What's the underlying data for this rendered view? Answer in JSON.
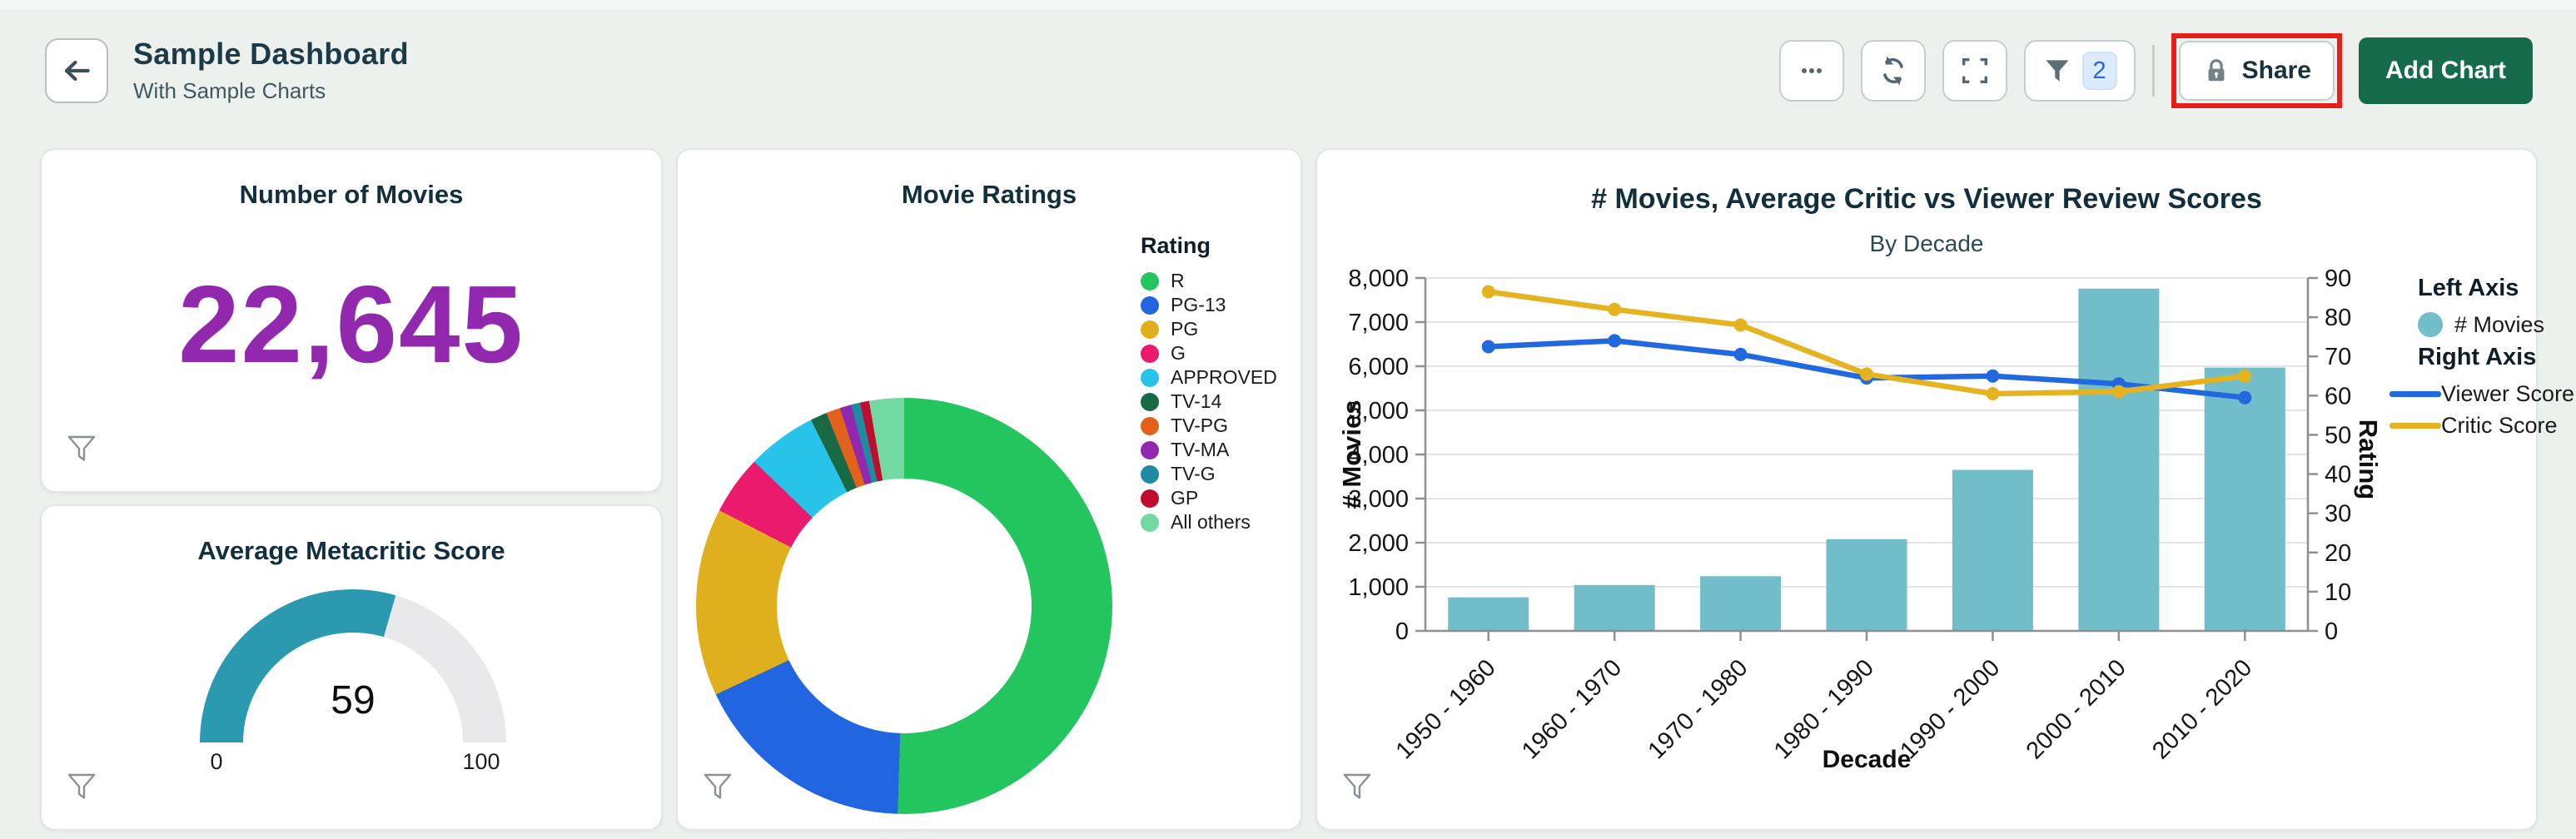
{
  "header": {
    "title": "Sample Dashboard",
    "subtitle": "With Sample Charts",
    "back_icon": "arrow-left"
  },
  "toolbar": {
    "more_icon": "ellipsis",
    "refresh_icon": "refresh",
    "fullscreen_icon": "fullscreen",
    "filter_icon": "funnel",
    "filter_count": "2",
    "share": {
      "label": "Share",
      "icon": "lock",
      "highlighted": true,
      "highlight_color": "#e5201b"
    },
    "add_chart": {
      "label": "Add Chart",
      "color": "#176b4d"
    }
  },
  "card_filter_icon": "funnel-outline",
  "chart_data": [
    {
      "type": "kpi",
      "title": "Number of Movies",
      "value": 22645,
      "formatted": "22,645",
      "color": "#9128ad"
    },
    {
      "type": "gauge",
      "title": "Average Metacritic Score",
      "value": 59,
      "min": 0,
      "max": 100,
      "fill_color": "#2b9ab1",
      "track_color": "#e9e9ec"
    },
    {
      "type": "pie",
      "title": "Movie Ratings",
      "legend_title": "Rating",
      "legend_position": "right",
      "labels": [
        "R",
        "PG-13",
        "PG",
        "G",
        "APPROVED",
        "TV-14",
        "TV-PG",
        "TV-MA",
        "TV-G",
        "GP",
        "All others"
      ],
      "colors": [
        "#22c55e",
        "#2166e0",
        "#dfaf1e",
        "#eb1a6d",
        "#27c3e8",
        "#186a45",
        "#e2611b",
        "#9227b0",
        "#1e8ba3",
        "#c00d2d",
        "#71d9a1"
      ],
      "values_pct": [
        50.5,
        17.5,
        14.6,
        4.6,
        5.4,
        1.3,
        1.1,
        0.9,
        0.7,
        0.7,
        2.7
      ],
      "donut_hole": 0.61
    },
    {
      "type": "bar+line",
      "title": "# Movies, Average Critic vs Viewer Review Scores",
      "subtitle": "By Decade",
      "categories": [
        "1950 - 1960",
        "1960 - 1970",
        "1970 - 1980",
        "1980 - 1990",
        "1990 - 2000",
        "2000 - 2010",
        "2010 - 2020"
      ],
      "series": [
        {
          "name": "# Movies",
          "type": "bar",
          "axis": "left",
          "color": "#72bdca",
          "values": [
            760,
            1040,
            1240,
            2080,
            3650,
            7760,
            5970
          ]
        },
        {
          "name": "Viewer Score",
          "type": "line",
          "axis": "right",
          "color": "#2268df",
          "values": [
            72.5,
            74,
            70.5,
            64.5,
            65,
            63,
            59.5
          ]
        },
        {
          "name": "Critic Score",
          "type": "line",
          "axis": "right",
          "color": "#e5b320",
          "values": [
            86.5,
            82,
            78,
            65.5,
            60.5,
            61,
            65
          ]
        }
      ],
      "left_axis": {
        "label": "# Movies",
        "min": 0,
        "max": 8000,
        "step": 1000
      },
      "right_axis": {
        "label": "Rating",
        "min": 0,
        "max": 90,
        "step": 10
      },
      "xlabel": "Decade",
      "grid": true,
      "legend": {
        "left_title": "Left Axis",
        "right_title": "Right Axis"
      }
    }
  ]
}
